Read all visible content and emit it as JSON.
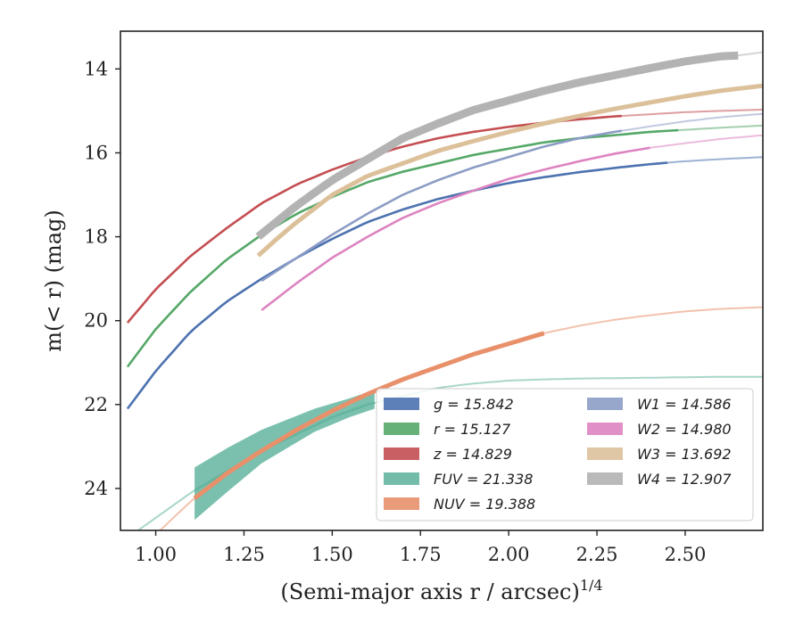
{
  "chart_data": {
    "type": "line",
    "xlabel": "(Semi-major axis r / arcsec)",
    "xlabel_sup": "1/4",
    "ylabel": "m(< r) (mag)",
    "xlim": [
      0.9,
      2.72
    ],
    "ylim": [
      25.0,
      13.1
    ],
    "y_inverted": true,
    "x_ticks": [
      1.0,
      1.25,
      1.5,
      1.75,
      2.0,
      2.25,
      2.5
    ],
    "x_tick_labels": [
      "1.00",
      "1.25",
      "1.50",
      "1.75",
      "2.00",
      "2.25",
      "2.50"
    ],
    "y_ticks": [
      14,
      16,
      18,
      20,
      22,
      24
    ],
    "y_tick_labels": [
      "14",
      "16",
      "18",
      "20",
      "22",
      "24"
    ],
    "grid": false,
    "legend_placement": "lower-right",
    "legend_columns": 2,
    "series": [
      {
        "key": "g",
        "name": "g = 15.842",
        "color": "#4c72b0",
        "x": [
          0.92,
          1.0,
          1.1,
          1.2,
          1.3,
          1.4,
          1.5,
          1.6,
          1.7,
          1.8,
          1.9,
          2.0,
          2.1,
          2.2,
          2.3,
          2.4,
          2.5,
          2.6,
          2.72
        ],
        "y": [
          22.1,
          21.2,
          20.25,
          19.55,
          19.0,
          18.5,
          18.05,
          17.65,
          17.35,
          17.1,
          16.9,
          16.72,
          16.58,
          16.46,
          16.36,
          16.27,
          16.2,
          16.15,
          16.1
        ],
        "solid_range": [
          0.92,
          2.45
        ]
      },
      {
        "key": "r",
        "name": "r = 15.127",
        "color": "#55a868",
        "x": [
          0.92,
          1.0,
          1.1,
          1.2,
          1.3,
          1.4,
          1.5,
          1.6,
          1.7,
          1.8,
          1.9,
          2.0,
          2.1,
          2.2,
          2.3,
          2.4,
          2.5,
          2.6,
          2.72
        ],
        "y": [
          21.1,
          20.2,
          19.3,
          18.55,
          17.95,
          17.45,
          17.05,
          16.7,
          16.45,
          16.25,
          16.05,
          15.9,
          15.75,
          15.65,
          15.58,
          15.5,
          15.45,
          15.4,
          15.35
        ],
        "solid_range": [
          0.92,
          2.48
        ]
      },
      {
        "key": "z",
        "name": "z = 14.829",
        "color": "#c44e52",
        "x": [
          0.92,
          1.0,
          1.1,
          1.2,
          1.3,
          1.4,
          1.5,
          1.6,
          1.7,
          1.8,
          1.9,
          2.0,
          2.1,
          2.2,
          2.3,
          2.4,
          2.5,
          2.6,
          2.72
        ],
        "y": [
          20.05,
          19.25,
          18.45,
          17.8,
          17.2,
          16.75,
          16.4,
          16.1,
          15.85,
          15.65,
          15.5,
          15.38,
          15.28,
          15.2,
          15.13,
          15.08,
          15.03,
          15.0,
          14.97
        ],
        "solid_range": [
          0.92,
          2.32
        ]
      },
      {
        "key": "FUV",
        "name": "FUV = 21.338",
        "color": "#64b5a0",
        "x": [
          0.95,
          1.0,
          1.1,
          1.2,
          1.3,
          1.4,
          1.5,
          1.6,
          1.7,
          1.8,
          1.9,
          2.0,
          2.1,
          2.2,
          2.3,
          2.4,
          2.5,
          2.6,
          2.72
        ],
        "y": [
          25.0,
          24.7,
          24.1,
          23.6,
          23.1,
          22.7,
          22.3,
          22.0,
          21.8,
          21.6,
          21.5,
          21.43,
          21.4,
          21.38,
          21.37,
          21.36,
          21.35,
          21.34,
          21.34
        ],
        "solid_range": [
          1.11,
          1.62
        ],
        "band_x": [
          1.11,
          1.2,
          1.3,
          1.45,
          1.55,
          1.62
        ],
        "band_upper": [
          23.5,
          23.05,
          22.6,
          22.1,
          21.85,
          21.65
        ],
        "band_lower": [
          24.75,
          24.1,
          23.4,
          22.65,
          22.3,
          22.1
        ]
      },
      {
        "key": "NUV",
        "name": "NUV = 19.388",
        "color": "#e8906a",
        "x": [
          0.95,
          1.0,
          1.1,
          1.2,
          1.3,
          1.4,
          1.5,
          1.6,
          1.7,
          1.8,
          1.9,
          2.0,
          2.1,
          2.2,
          2.3,
          2.4,
          2.5,
          2.6,
          2.72
        ],
        "y": [
          25.6,
          25.1,
          24.3,
          23.65,
          23.1,
          22.6,
          22.15,
          21.75,
          21.4,
          21.1,
          20.8,
          20.55,
          20.3,
          20.12,
          19.98,
          19.87,
          19.78,
          19.72,
          19.68
        ],
        "solid_range": [
          1.11,
          2.1
        ]
      },
      {
        "key": "W1",
        "name": "W1 = 14.586",
        "color": "#8c9dc5",
        "x": [
          1.3,
          1.4,
          1.5,
          1.6,
          1.7,
          1.8,
          1.9,
          2.0,
          2.1,
          2.2,
          2.3,
          2.4,
          2.5,
          2.6,
          2.72
        ],
        "y": [
          19.05,
          18.5,
          17.95,
          17.45,
          17.0,
          16.65,
          16.35,
          16.1,
          15.85,
          15.65,
          15.5,
          15.37,
          15.25,
          15.15,
          15.07
        ],
        "solid_range": [
          1.3,
          2.32
        ]
      },
      {
        "key": "W2",
        "name": "W2 = 14.980",
        "color": "#dd84c0",
        "x": [
          1.3,
          1.4,
          1.5,
          1.6,
          1.7,
          1.8,
          1.9,
          2.0,
          2.1,
          2.2,
          2.3,
          2.4,
          2.5,
          2.6,
          2.72
        ],
        "y": [
          19.75,
          19.1,
          18.5,
          18.0,
          17.55,
          17.2,
          16.9,
          16.62,
          16.4,
          16.2,
          16.02,
          15.88,
          15.77,
          15.67,
          15.58
        ],
        "solid_range": [
          1.3,
          2.4
        ]
      },
      {
        "key": "W3",
        "name": "W3 = 13.692",
        "color": "#dcc09a",
        "x": [
          1.29,
          1.35,
          1.4,
          1.5,
          1.6,
          1.7,
          1.8,
          1.9,
          2.0,
          2.1,
          2.2,
          2.3,
          2.4,
          2.5,
          2.6,
          2.72
        ],
        "y": [
          18.45,
          18.0,
          17.65,
          17.0,
          16.55,
          16.25,
          15.95,
          15.72,
          15.5,
          15.3,
          15.12,
          14.95,
          14.8,
          14.65,
          14.52,
          14.4
        ],
        "solid_range": [
          1.29,
          2.72
        ]
      },
      {
        "key": "W4",
        "name": "W4 = 12.907",
        "color": "#b3b3b3",
        "x": [
          1.29,
          1.4,
          1.5,
          1.6,
          1.7,
          1.8,
          1.9,
          2.0,
          2.1,
          2.2,
          2.3,
          2.4,
          2.5,
          2.6,
          2.65,
          2.72
        ],
        "y": [
          18.0,
          17.25,
          16.65,
          16.15,
          15.65,
          15.3,
          14.98,
          14.75,
          14.52,
          14.32,
          14.15,
          13.98,
          13.82,
          13.7,
          13.68,
          13.6
        ],
        "solid_range": [
          1.29,
          2.65
        ]
      }
    ],
    "legend": [
      {
        "label": "g = 15.842",
        "color": "#4c72b0"
      },
      {
        "label": "r = 15.127",
        "color": "#55a868"
      },
      {
        "label": "z = 14.829",
        "color": "#c44e52"
      },
      {
        "label": "FUV = 21.338",
        "color": "#64b5a0"
      },
      {
        "label": "NUV = 19.388",
        "color": "#e8906a"
      },
      {
        "label": "W1 = 14.586",
        "color": "#8c9dc5"
      },
      {
        "label": "W2 = 14.980",
        "color": "#dd84c0"
      },
      {
        "label": "W3 = 13.692",
        "color": "#dcc09a"
      },
      {
        "label": "W4 = 12.907",
        "color": "#b3b3b3"
      }
    ]
  }
}
